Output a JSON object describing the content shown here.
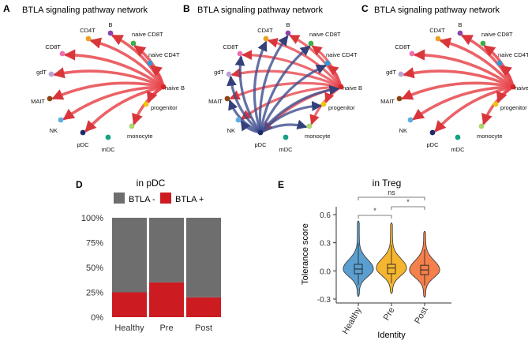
{
  "colors": {
    "red_arrow": "#e8464c",
    "blue_arrow": "#3f4d8f",
    "gray_bar": "#6e6e6e",
    "red_bar": "#cc1c22",
    "violin_healthy": "#5a9fd0",
    "violin_pre": "#f5b52e",
    "violin_post": "#f4804b"
  },
  "panels": {
    "A": {
      "letter": "A",
      "title": "BTLA signaling pathway network"
    },
    "B": {
      "letter": "B",
      "title": "BTLA signaling pathway network"
    },
    "C": {
      "letter": "C",
      "title": "BTLA signaling pathway network"
    },
    "D": {
      "letter": "D"
    },
    "E": {
      "letter": "E"
    }
  },
  "network": {
    "nodes": [
      {
        "id": "CD4T",
        "label": "CD4T",
        "color": "#f0a020"
      },
      {
        "id": "B",
        "label": "B",
        "color": "#8e44ad"
      },
      {
        "id": "naiveCD8T",
        "label": "naive CD8T",
        "color": "#3fae49"
      },
      {
        "id": "CD8T",
        "label": "CD8T",
        "color": "#ee6fb0"
      },
      {
        "id": "naiveCD4T",
        "label": "naive CD4T",
        "color": "#2d9bd6"
      },
      {
        "id": "gdT",
        "label": "gdT",
        "color": "#b8a4d4"
      },
      {
        "id": "naiveB",
        "label": "naive B",
        "color": "#d62728"
      },
      {
        "id": "MAIT",
        "label": "MAIT",
        "color": "#8b4513"
      },
      {
        "id": "progenitor",
        "label": "progenitor",
        "color": "#f1c40f"
      },
      {
        "id": "NK",
        "label": "NK",
        "color": "#5dade2"
      },
      {
        "id": "monocyte",
        "label": "monocyte",
        "color": "#a6d96a"
      },
      {
        "id": "pDC",
        "label": "pDC",
        "color": "#1f2a6b"
      },
      {
        "id": "mDC",
        "label": "mDC",
        "color": "#16a085"
      }
    ],
    "edges_A": [
      {
        "from": "naiveB",
        "to": "CD4T"
      },
      {
        "from": "naiveB",
        "to": "B"
      },
      {
        "from": "naiveB",
        "to": "naiveCD8T"
      },
      {
        "from": "naiveB",
        "to": "naiveCD4T"
      },
      {
        "from": "naiveB",
        "to": "CD8T"
      },
      {
        "from": "naiveB",
        "to": "gdT"
      },
      {
        "from": "naiveB",
        "to": "MAIT"
      },
      {
        "from": "naiveB",
        "to": "NK"
      },
      {
        "from": "naiveB",
        "to": "pDC"
      },
      {
        "from": "naiveB",
        "to": "monocyte"
      },
      {
        "from": "naiveB",
        "to": "progenitor"
      }
    ],
    "edges_B_blue": [
      {
        "from": "pDC",
        "to": "CD4T"
      },
      {
        "from": "pDC",
        "to": "B"
      },
      {
        "from": "pDC",
        "to": "naiveCD8T"
      },
      {
        "from": "pDC",
        "to": "naiveCD4T"
      },
      {
        "from": "pDC",
        "to": "CD8T"
      },
      {
        "from": "pDC",
        "to": "gdT"
      },
      {
        "from": "pDC",
        "to": "MAIT"
      },
      {
        "from": "pDC",
        "to": "NK"
      },
      {
        "from": "pDC",
        "to": "monocyte"
      },
      {
        "from": "pDC",
        "to": "progenitor"
      },
      {
        "from": "pDC",
        "to": "naiveB"
      }
    ],
    "edges_C": [
      {
        "from": "naiveB",
        "to": "CD4T"
      },
      {
        "from": "naiveB",
        "to": "B"
      },
      {
        "from": "naiveB",
        "to": "naiveCD8T"
      },
      {
        "from": "naiveB",
        "to": "naiveCD4T"
      },
      {
        "from": "naiveB",
        "to": "CD8T"
      },
      {
        "from": "naiveB",
        "to": "gdT"
      },
      {
        "from": "naiveB",
        "to": "MAIT"
      },
      {
        "from": "naiveB",
        "to": "NK"
      },
      {
        "from": "naiveB",
        "to": "pDC"
      },
      {
        "from": "naiveB",
        "to": "monocyte"
      },
      {
        "from": "naiveB",
        "to": "progenitor"
      }
    ]
  },
  "chart_data": [
    {
      "type": "bar",
      "stacked": true,
      "title": "in pDC",
      "legend": [
        "BTLA -",
        "BTLA +"
      ],
      "legend_position": "top",
      "categories": [
        "Healthy",
        "Pre",
        "Post"
      ],
      "series": [
        {
          "name": "BTLA +",
          "values": [
            25,
            35,
            20
          ],
          "color": "#cc1c22"
        },
        {
          "name": "BTLA -",
          "values": [
            75,
            65,
            80
          ],
          "color": "#6e6e6e"
        }
      ],
      "ylim": [
        0,
        100
      ],
      "yticks": [
        "0%",
        "25%",
        "50%",
        "75%",
        "100%"
      ],
      "ytick_values": [
        0,
        25,
        50,
        75,
        100
      ]
    },
    {
      "type": "violin",
      "title": "in Treg",
      "xlabel": "Identity",
      "ylabel": "Tolerance score",
      "categories": [
        "Healthy",
        "Pre",
        "Post"
      ],
      "ylim": [
        -0.3,
        0.6
      ],
      "yticks": [
        -0.3,
        0.0,
        0.3,
        0.6
      ],
      "ytick_labels": [
        "-0.3",
        "0.0",
        "0.3",
        "0.6"
      ],
      "box": [
        {
          "q1": -0.03,
          "median": 0.02,
          "q3": 0.07
        },
        {
          "q1": -0.03,
          "median": 0.03,
          "q3": 0.07
        },
        {
          "q1": -0.04,
          "median": 0.01,
          "q3": 0.06
        }
      ],
      "range": [
        {
          "min": -0.27,
          "max": 0.53
        },
        {
          "min": -0.24,
          "max": 0.51
        },
        {
          "min": -0.28,
          "max": 0.42
        }
      ],
      "significance": [
        {
          "from": "Healthy",
          "to": "Pre",
          "label": "*"
        },
        {
          "from": "Pre",
          "to": "Post",
          "label": "*"
        },
        {
          "from": "Healthy",
          "to": "Post",
          "label": "ns"
        }
      ]
    }
  ]
}
